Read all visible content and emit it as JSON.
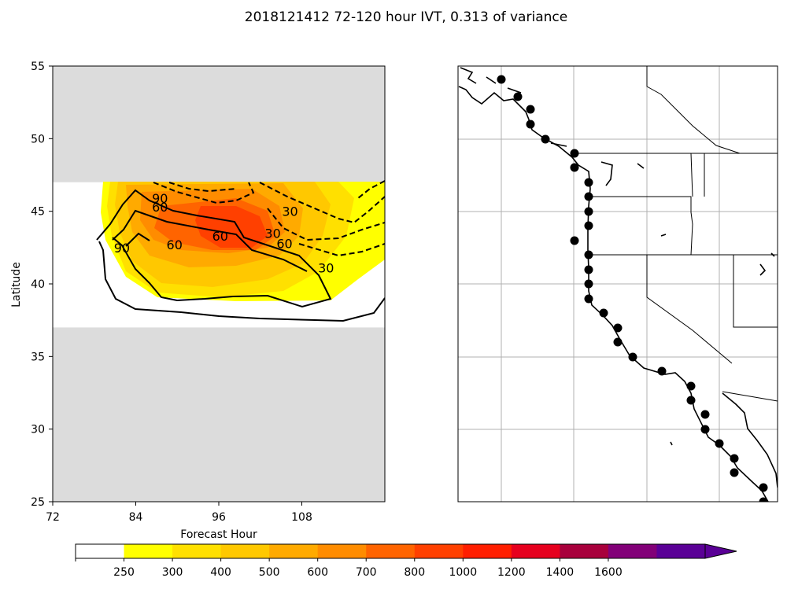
{
  "title": "2018121412 72-120 hour IVT, 0.313 of variance",
  "colors": {
    "grey_mask": "#dcdcdc",
    "levels": [
      "#ffffff",
      "#ffff00",
      "#ffe000",
      "#ffc800",
      "#ffaa00",
      "#ff8c00",
      "#ff6400",
      "#ff4000",
      "#ff1e00",
      "#e6001e",
      "#a8003c",
      "#820078",
      "#5a0096"
    ]
  },
  "chart_data": [
    {
      "type": "contour",
      "panel": "left",
      "xlabel": "Forecast Hour",
      "ylabel": "Latitude",
      "xlim": [
        72,
        120
      ],
      "ylim": [
        25,
        55
      ],
      "xticks": [
        72,
        84,
        96,
        108
      ],
      "yticks": [
        25,
        30,
        35,
        40,
        45,
        50,
        55
      ],
      "valid_lat_band": [
        37,
        47
      ],
      "grid": false,
      "contour_labels": [
        {
          "text": "90",
          "x": 87.5,
          "y": 45.9
        },
        {
          "text": "60",
          "x": 87.5,
          "y": 45.3
        },
        {
          "text": "30",
          "x": 106.3,
          "y": 45.0
        },
        {
          "text": "60",
          "x": 96.2,
          "y": 43.3
        },
        {
          "text": "30",
          "x": 103.8,
          "y": 43.5
        },
        {
          "text": "60",
          "x": 105.5,
          "y": 42.8
        },
        {
          "text": "30",
          "x": 111.5,
          "y": 41.1
        },
        {
          "text": "90",
          "x": 82.0,
          "y": 42.5
        },
        {
          "text": "60",
          "x": 89.6,
          "y": 42.7
        }
      ]
    },
    {
      "type": "map",
      "panel": "right",
      "gridlines": true,
      "description_points": "track markers along the west coast"
    }
  ],
  "colorbar": {
    "tick_labels": [
      "250",
      "300",
      "400",
      "500",
      "600",
      "700",
      "800",
      "1000",
      "1200",
      "1400",
      "1600"
    ],
    "extend": "max"
  }
}
